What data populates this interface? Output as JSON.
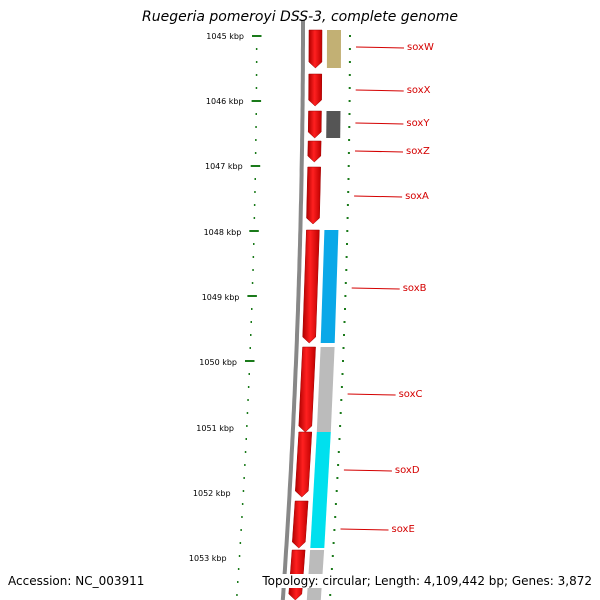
{
  "title": "Ruegeria pomeroyi DSS-3, complete genome",
  "footer": {
    "accession": "Accession: NC_003911",
    "summary": "Topology: circular; Length: 4,109,442 bp; Genes: 3,872"
  },
  "scale_labels": [
    "1045 kbp",
    "1046 kbp",
    "1047 kbp",
    "1048 kbp",
    "1049 kbp",
    "1050 kbp",
    "1051 kbp",
    "1052 kbp",
    "1053 kbp"
  ],
  "genes": [
    {
      "name": "soxW",
      "cog_color": "#c2b074"
    },
    {
      "name": "soxX",
      "cog_color": null
    },
    {
      "name": "soxY",
      "cog_color": "#555555"
    },
    {
      "name": "soxZ",
      "cog_color": null
    },
    {
      "name": "soxA",
      "cog_color": null
    },
    {
      "name": "soxB",
      "cog_color": "#0aa8e8"
    },
    {
      "name": "soxC",
      "cog_color": "#bbbbbb"
    },
    {
      "name": "soxD",
      "cog_color": "#00e0ee"
    },
    {
      "name": "soxE",
      "cog_color": "#bbbbbb"
    }
  ],
  "colors": {
    "cds": "#ff0000",
    "label": "#d40000",
    "scale": "#1a7a1a",
    "backbone": "#777777"
  }
}
